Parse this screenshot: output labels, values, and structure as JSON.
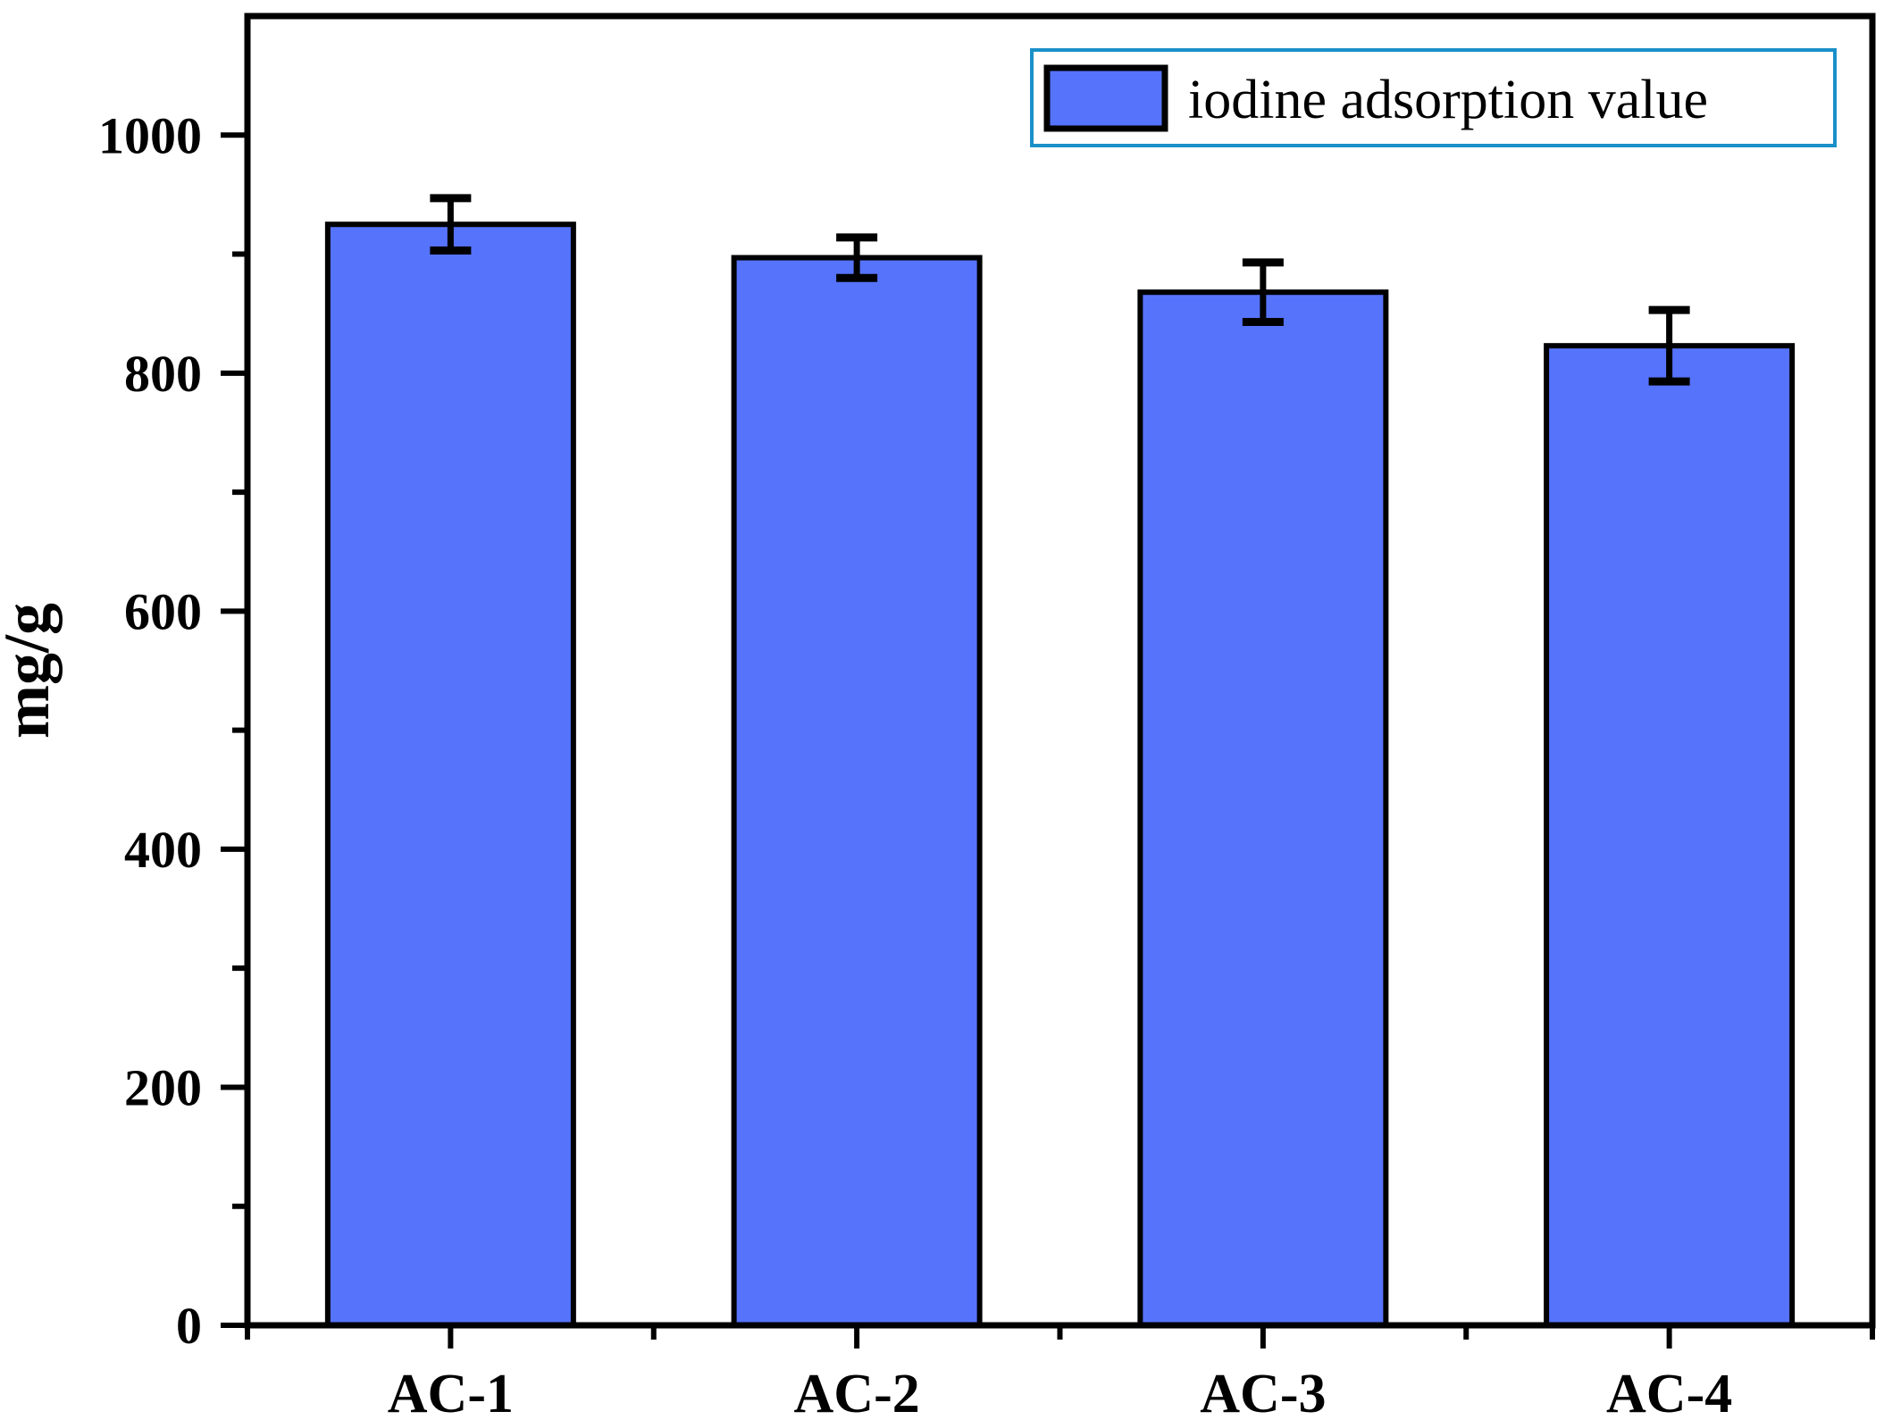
{
  "chart_data": {
    "type": "bar",
    "title": "",
    "categories": [
      "AC-1",
      "AC-2",
      "AC-3",
      "AC-4"
    ],
    "series": [
      {
        "name": "iodine adsorption value",
        "values": [
          925,
          897,
          868,
          823
        ],
        "errors": [
          22,
          17,
          25,
          30
        ]
      }
    ],
    "xlabel": "",
    "ylabel": "mg/g",
    "ylim": [
      0,
      1100
    ],
    "y_major_ticks": [
      0,
      200,
      400,
      600,
      800,
      1000
    ],
    "y_minor_step": 100,
    "grid": "off",
    "legend": {
      "label": "iodine adsorption value",
      "position": "top-right",
      "border_color": "#1a90c8"
    },
    "colors": {
      "bar_fill": "#5673FC",
      "bar_stroke": "#000000",
      "axis": "#000000",
      "text": "#000000",
      "background": "#ffffff"
    }
  }
}
